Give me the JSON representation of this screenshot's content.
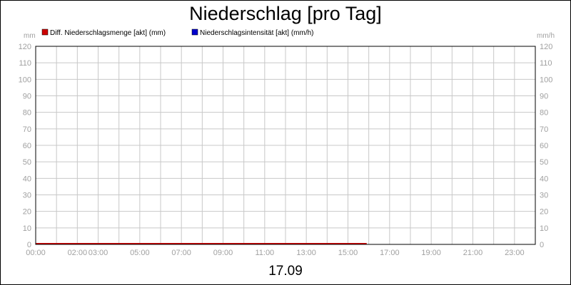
{
  "chart_data": {
    "type": "line",
    "title": "Niederschlag [pro Tag]",
    "date_label": "17.09",
    "y_left_unit": "mm",
    "y_right_unit": "mm/h",
    "ylim": [
      0,
      120
    ],
    "y_ticks": [
      0,
      10,
      20,
      30,
      40,
      50,
      60,
      70,
      80,
      90,
      100,
      110,
      120
    ],
    "x_range_hours": [
      0,
      24
    ],
    "x_ticks": [
      {
        "hour": 0,
        "label": "00:00"
      },
      {
        "hour": 2,
        "label": "02:00"
      },
      {
        "hour": 3,
        "label": "03:00"
      },
      {
        "hour": 5,
        "label": "05:00"
      },
      {
        "hour": 7,
        "label": "07:00"
      },
      {
        "hour": 9,
        "label": "09:00"
      },
      {
        "hour": 11,
        "label": "11:00"
      },
      {
        "hour": 13,
        "label": "13:00"
      },
      {
        "hour": 15,
        "label": "15:00"
      },
      {
        "hour": 17,
        "label": "17:00"
      },
      {
        "hour": 19,
        "label": "19:00"
      },
      {
        "hour": 21,
        "label": "21:00"
      },
      {
        "hour": 23,
        "label": "23:00"
      }
    ],
    "grid": true,
    "legend_position": "top-left",
    "series": [
      {
        "name": "Diff. Niederschlagsmenge [akt] (mm)",
        "color": "#cc0000",
        "points": [
          [
            0,
            0
          ],
          [
            15.9,
            0
          ]
        ]
      },
      {
        "name": "Niederschlagsintensität [akt] (mm/h)",
        "color": "#0000cc",
        "points": []
      }
    ]
  }
}
